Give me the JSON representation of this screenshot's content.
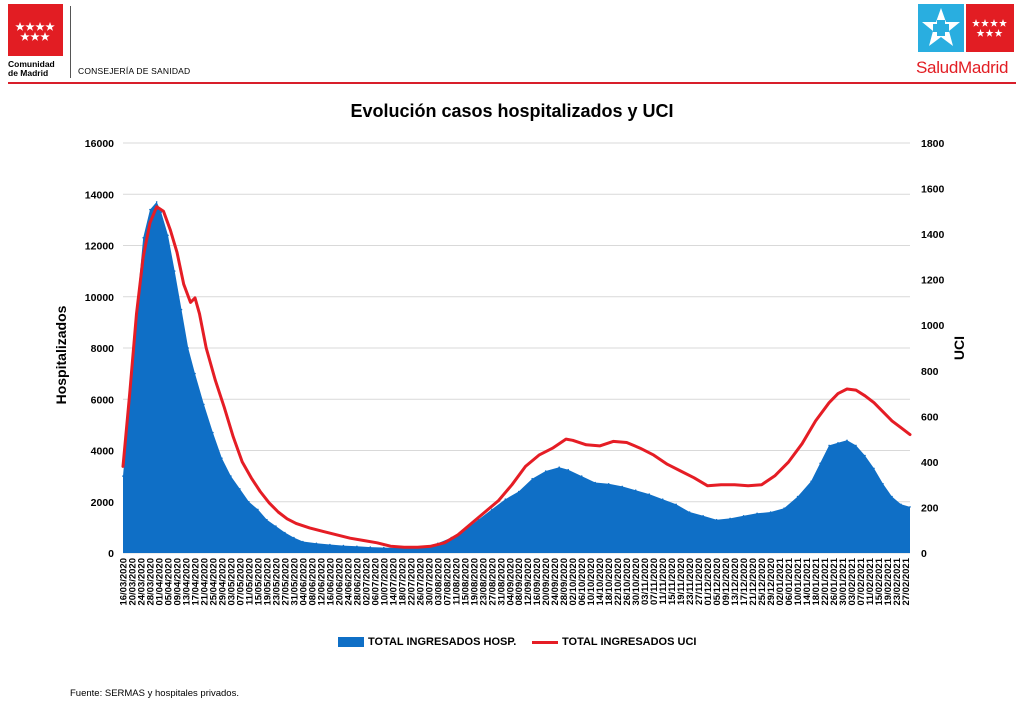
{
  "header": {
    "org_name_line1": "Comunidad",
    "org_name_line2": "de Madrid",
    "department": "CONSEJERÍA DE SANIDAD",
    "brand_part1": "Salud",
    "brand_part2": "Madrid"
  },
  "footer": {
    "source": "Fuente: SERMAS y hospitales privados."
  },
  "colors": {
    "hosp_area": "#0f6fc6",
    "uci_line": "#e51d25",
    "brand_red": "#e21d23",
    "brand_blue": "#29aee0"
  },
  "chart_data": {
    "type": "area",
    "title": "Evolución casos hospitalizados y UCI",
    "ylabel": "Hospitalizados",
    "y2label": "UCI",
    "ylim": [
      0,
      16000
    ],
    "y2lim": [
      0,
      1800
    ],
    "yticks": [
      "0",
      "2000",
      "4000",
      "6000",
      "8000",
      "10000",
      "12000",
      "14000",
      "16000"
    ],
    "y2ticks": [
      "0",
      "200",
      "400",
      "600",
      "800",
      "1000",
      "1200",
      "1400",
      "1600",
      "1800"
    ],
    "grid": true,
    "legend_position": "bottom",
    "x_tick_labels": [
      "16/03/2020",
      "20/03/2020",
      "24/03/2020",
      "28/03/2020",
      "01/04/2020",
      "05/04/2020",
      "09/04/2020",
      "13/04/2020",
      "17/04/2020",
      "21/04/2020",
      "25/04/2020",
      "29/04/2020",
      "03/05/2020",
      "07/05/2020",
      "11/05/2020",
      "15/05/2020",
      "19/05/2020",
      "23/05/2020",
      "27/05/2020",
      "31/05/2020",
      "04/06/2020",
      "08/06/2020",
      "12/06/2020",
      "16/06/2020",
      "20/06/2020",
      "24/06/2020",
      "28/06/2020",
      "02/07/2020",
      "06/07/2020",
      "10/07/2020",
      "14/07/2020",
      "18/07/2020",
      "22/07/2020",
      "26/07/2020",
      "30/07/2020",
      "03/08/2020",
      "07/08/2020",
      "11/08/2020",
      "15/08/2020",
      "19/08/2020",
      "23/08/2020",
      "27/08/2020",
      "31/08/2020",
      "04/09/2020",
      "08/09/2020",
      "12/09/2020",
      "16/09/2020",
      "20/09/2020",
      "24/09/2020",
      "28/09/2020",
      "02/10/2020",
      "06/10/2020",
      "10/10/2020",
      "14/10/2020",
      "18/10/2020",
      "22/10/2020",
      "26/10/2020",
      "30/10/2020",
      "03/11/2020",
      "07/11/2020",
      "11/11/2020",
      "15/11/2020",
      "19/11/2020",
      "23/11/2020",
      "27/11/2020",
      "01/12/2020",
      "05/12/2020",
      "09/12/2020",
      "13/12/2020",
      "17/12/2020",
      "21/12/2020",
      "25/12/2020",
      "29/12/2020",
      "02/01/2021",
      "06/01/2021",
      "10/01/2021",
      "14/01/2021",
      "18/01/2021",
      "22/01/2021",
      "26/01/2021",
      "30/01/2021",
      "03/02/2021",
      "07/02/2021",
      "11/02/2021",
      "15/02/2021",
      "19/02/2021",
      "23/02/2021",
      "27/02/2021"
    ],
    "series": [
      {
        "name": "TOTAL INGRESADOS HOSP.",
        "axis": "left",
        "style": "area",
        "x": [
          "16/03/2020",
          "19/03/2020",
          "22/03/2020",
          "25/03/2020",
          "28/03/2020",
          "31/03/2020",
          "02/04/2020",
          "05/04/2020",
          "08/04/2020",
          "11/04/2020",
          "14/04/2020",
          "17/04/2020",
          "21/04/2020",
          "25/04/2020",
          "29/04/2020",
          "03/05/2020",
          "07/05/2020",
          "11/05/2020",
          "15/05/2020",
          "19/05/2020",
          "23/05/2020",
          "27/05/2020",
          "31/05/2020",
          "04/06/2020",
          "10/06/2020",
          "16/06/2020",
          "22/06/2020",
          "28/06/2020",
          "04/07/2020",
          "10/07/2020",
          "16/07/2020",
          "22/07/2020",
          "28/07/2020",
          "03/08/2020",
          "09/08/2020",
          "15/08/2020",
          "21/08/2020",
          "27/08/2020",
          "02/09/2020",
          "08/09/2020",
          "14/09/2020",
          "20/09/2020",
          "26/09/2020",
          "30/09/2020",
          "06/10/2020",
          "12/10/2020",
          "18/10/2020",
          "24/10/2020",
          "30/10/2020",
          "05/11/2020",
          "11/11/2020",
          "17/11/2020",
          "23/11/2020",
          "29/11/2020",
          "05/12/2020",
          "11/12/2020",
          "17/12/2020",
          "23/12/2020",
          "29/12/2020",
          "04/01/2021",
          "10/01/2021",
          "16/01/2021",
          "20/01/2021",
          "24/01/2021",
          "28/01/2021",
          "01/02/2021",
          "05/02/2021",
          "09/02/2021",
          "13/02/2021",
          "17/02/2021",
          "21/02/2021",
          "25/02/2021",
          "01/03/2021"
        ],
        "values": [
          3000,
          6000,
          9500,
          12300,
          13400,
          13700,
          13300,
          12400,
          11000,
          9500,
          8000,
          7000,
          5800,
          4700,
          3700,
          3000,
          2500,
          2000,
          1700,
          1300,
          1050,
          800,
          600,
          450,
          380,
          330,
          290,
          260,
          230,
          210,
          200,
          210,
          260,
          380,
          600,
          900,
          1300,
          1700,
          2100,
          2400,
          2900,
          3200,
          3350,
          3250,
          3000,
          2750,
          2700,
          2600,
          2450,
          2300,
          2100,
          1900,
          1600,
          1450,
          1300,
          1350,
          1450,
          1550,
          1600,
          1750,
          2200,
          2800,
          3500,
          4200,
          4300,
          4400,
          4200,
          3800,
          3300,
          2700,
          2200,
          1900,
          1800
        ]
      },
      {
        "name": "TOTAL INGRESADOS UCI",
        "axis": "right",
        "style": "line",
        "x": [
          "16/03/2020",
          "19/03/2020",
          "22/03/2020",
          "25/03/2020",
          "28/03/2020",
          "31/03/2020",
          "03/04/2020",
          "06/04/2020",
          "09/04/2020",
          "12/04/2020",
          "15/04/2020",
          "17/04/2020",
          "19/04/2020",
          "22/04/2020",
          "26/04/2020",
          "30/04/2020",
          "04/05/2020",
          "08/05/2020",
          "12/05/2020",
          "16/05/2020",
          "20/05/2020",
          "24/05/2020",
          "28/05/2020",
          "01/06/2020",
          "07/06/2020",
          "13/06/2020",
          "19/06/2020",
          "25/06/2020",
          "01/07/2020",
          "07/07/2020",
          "13/07/2020",
          "19/07/2020",
          "25/07/2020",
          "31/07/2020",
          "06/08/2020",
          "12/08/2020",
          "18/08/2020",
          "24/08/2020",
          "30/08/2020",
          "05/09/2020",
          "11/09/2020",
          "17/09/2020",
          "23/09/2020",
          "29/09/2020",
          "02/10/2020",
          "08/10/2020",
          "14/10/2020",
          "20/10/2020",
          "26/10/2020",
          "01/11/2020",
          "07/11/2020",
          "13/11/2020",
          "19/11/2020",
          "25/11/2020",
          "01/12/2020",
          "07/12/2020",
          "13/12/2020",
          "19/12/2020",
          "25/12/2020",
          "31/12/2020",
          "06/01/2021",
          "12/01/2021",
          "18/01/2021",
          "24/01/2021",
          "28/01/2021",
          "01/02/2021",
          "05/02/2021",
          "09/02/2021",
          "13/02/2021",
          "17/02/2021",
          "21/02/2021",
          "25/02/2021",
          "01/03/2021"
        ],
        "values": [
          380,
          700,
          1050,
          1300,
          1450,
          1520,
          1500,
          1420,
          1320,
          1180,
          1100,
          1120,
          1050,
          900,
          760,
          640,
          510,
          400,
          330,
          270,
          220,
          180,
          150,
          130,
          110,
          95,
          80,
          65,
          55,
          45,
          30,
          25,
          25,
          30,
          45,
          80,
          130,
          180,
          230,
          300,
          380,
          430,
          460,
          500,
          495,
          475,
          470,
          490,
          485,
          460,
          430,
          390,
          360,
          330,
          295,
          300,
          300,
          295,
          300,
          340,
          400,
          480,
          580,
          660,
          700,
          720,
          715,
          690,
          660,
          620,
          580,
          550,
          520
        ]
      }
    ]
  }
}
